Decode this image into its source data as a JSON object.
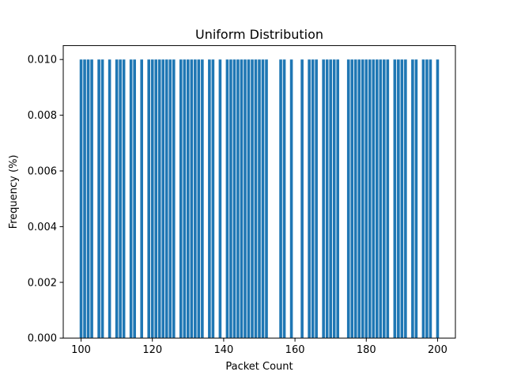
{
  "chart_data": {
    "type": "bar",
    "title": "Uniform Distribution",
    "xlabel": "Packet Count",
    "ylabel": "Frequency (%)",
    "xlim": [
      95,
      205
    ],
    "ylim": [
      0,
      0.0105
    ],
    "xticks": [
      100,
      120,
      140,
      160,
      180,
      200
    ],
    "yticks": [
      0.0,
      0.002,
      0.004,
      0.006,
      0.008,
      0.01
    ],
    "ytick_labels": [
      "0.000",
      "0.002",
      "0.004",
      "0.006",
      "0.008",
      "0.010"
    ],
    "bar_width": 0.8,
    "grid": false,
    "legend": "none",
    "color": "#1f77b4",
    "x": [
      100,
      101,
      102,
      103,
      105,
      106,
      108,
      110,
      111,
      112,
      114,
      115,
      117,
      119,
      120,
      121,
      122,
      123,
      124,
      125,
      126,
      128,
      129,
      130,
      131,
      132,
      133,
      134,
      136,
      137,
      139,
      141,
      142,
      143,
      144,
      145,
      146,
      147,
      148,
      149,
      150,
      151,
      152,
      156,
      157,
      159,
      162,
      164,
      165,
      166,
      168,
      169,
      170,
      171,
      172,
      175,
      176,
      177,
      178,
      179,
      180,
      181,
      182,
      183,
      184,
      185,
      186,
      188,
      189,
      190,
      191,
      193,
      194,
      196,
      197,
      198,
      200
    ],
    "values": [
      0.01,
      0.01,
      0.01,
      0.01,
      0.01,
      0.01,
      0.01,
      0.01,
      0.01,
      0.01,
      0.01,
      0.01,
      0.01,
      0.01,
      0.01,
      0.01,
      0.01,
      0.01,
      0.01,
      0.01,
      0.01,
      0.01,
      0.01,
      0.01,
      0.01,
      0.01,
      0.01,
      0.01,
      0.01,
      0.01,
      0.01,
      0.01,
      0.01,
      0.01,
      0.01,
      0.01,
      0.01,
      0.01,
      0.01,
      0.01,
      0.01,
      0.01,
      0.01,
      0.01,
      0.01,
      0.01,
      0.01,
      0.01,
      0.01,
      0.01,
      0.01,
      0.01,
      0.01,
      0.01,
      0.01,
      0.01,
      0.01,
      0.01,
      0.01,
      0.01,
      0.01,
      0.01,
      0.01,
      0.01,
      0.01,
      0.01,
      0.01,
      0.01,
      0.01,
      0.01,
      0.01,
      0.01,
      0.01,
      0.01,
      0.01,
      0.01,
      0.01
    ]
  }
}
